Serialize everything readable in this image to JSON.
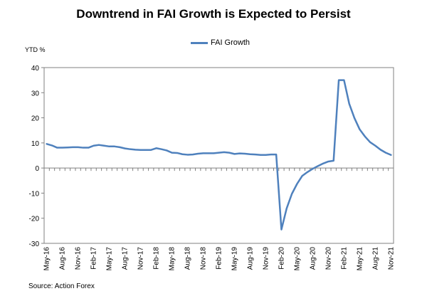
{
  "chart_data": {
    "type": "line",
    "title": "Downtrend in FAI Growth is Expected to Persist",
    "ylabel": "YTD %",
    "xlabel": "",
    "ylim": [
      -30,
      40
    ],
    "yticks": [
      40,
      30,
      20,
      10,
      0,
      -10,
      -20,
      -30
    ],
    "grid": false,
    "legend_position": "top-center",
    "x_tick_labels": [
      "May-16",
      "Aug-16",
      "Nov-16",
      "Feb-17",
      "May-17",
      "Aug-17",
      "Nov-17",
      "Feb-18",
      "May-18",
      "Aug-18",
      "Nov-18",
      "Feb-19",
      "May-19",
      "Aug-19",
      "Nov-19",
      "Feb-20",
      "May-20",
      "Aug-20",
      "Nov-20",
      "Feb-21",
      "May-21",
      "Aug-21",
      "Nov-21"
    ],
    "categories": [
      "May-16",
      "Jun-16",
      "Jul-16",
      "Aug-16",
      "Sep-16",
      "Oct-16",
      "Nov-16",
      "Dec-16",
      "Jan-17",
      "Feb-17",
      "Mar-17",
      "Apr-17",
      "May-17",
      "Jun-17",
      "Jul-17",
      "Aug-17",
      "Sep-17",
      "Oct-17",
      "Nov-17",
      "Dec-17",
      "Jan-18",
      "Feb-18",
      "Mar-18",
      "Apr-18",
      "May-18",
      "Jun-18",
      "Jul-18",
      "Aug-18",
      "Sep-18",
      "Oct-18",
      "Nov-18",
      "Dec-18",
      "Jan-19",
      "Feb-19",
      "Mar-19",
      "Apr-19",
      "May-19",
      "Jun-19",
      "Jul-19",
      "Aug-19",
      "Sep-19",
      "Oct-19",
      "Nov-19",
      "Dec-19",
      "Jan-20",
      "Feb-20",
      "Mar-20",
      "Apr-20",
      "May-20",
      "Jun-20",
      "Jul-20",
      "Aug-20",
      "Sep-20",
      "Oct-20",
      "Nov-20",
      "Dec-20",
      "Jan-21",
      "Feb-21",
      "Mar-21",
      "Apr-21",
      "May-21",
      "Jun-21",
      "Jul-21",
      "Aug-21",
      "Sep-21",
      "Oct-21",
      "Nov-21"
    ],
    "series": [
      {
        "name": "FAI Growth",
        "color": "#4f81bd",
        "values": [
          9.6,
          9.0,
          8.1,
          8.1,
          8.2,
          8.3,
          8.3,
          8.1,
          8.1,
          8.9,
          9.2,
          8.9,
          8.6,
          8.6,
          8.3,
          7.8,
          7.5,
          7.3,
          7.2,
          7.2,
          7.2,
          7.9,
          7.5,
          7.0,
          6.1,
          6.0,
          5.5,
          5.3,
          5.4,
          5.7,
          5.9,
          5.9,
          5.9,
          6.1,
          6.3,
          6.1,
          5.6,
          5.8,
          5.7,
          5.5,
          5.4,
          5.2,
          5.2,
          5.4,
          5.4,
          -24.5,
          -16.1,
          -10.3,
          -6.3,
          -3.1,
          -1.6,
          -0.3,
          0.8,
          1.8,
          2.6,
          2.9,
          35.0,
          35.0,
          25.6,
          19.9,
          15.4,
          12.6,
          10.3,
          8.9,
          7.3,
          6.1,
          5.2
        ]
      }
    ]
  },
  "legend": {
    "label": "FAI Growth"
  },
  "source": "Source: Action Forex"
}
